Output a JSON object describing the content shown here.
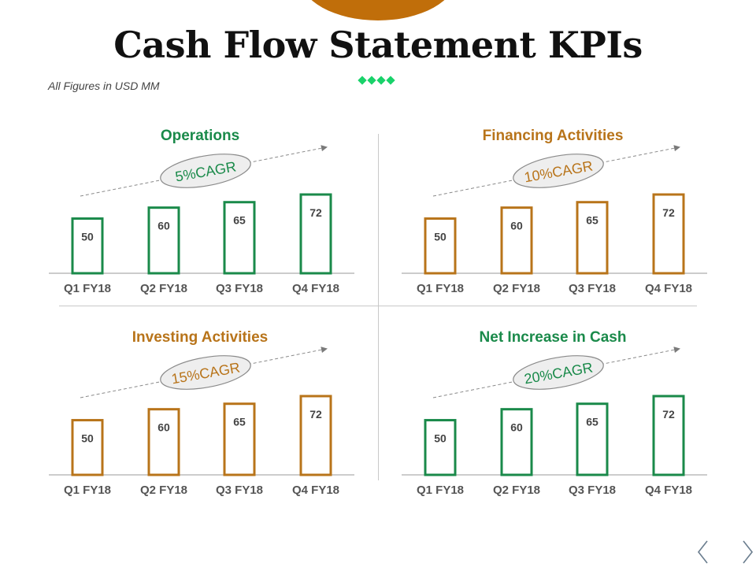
{
  "page": {
    "title": "Cash Flow Statement KPIs",
    "subtitle": "All Figures in USD MM",
    "accent_color": "#c06e0a",
    "diamond_color": "#19d26a",
    "nav": {
      "prev_icon": "chevron-left-icon",
      "next_icon": "chevron-right-icon"
    }
  },
  "chart_data": [
    {
      "type": "bar",
      "title": "Operations",
      "categories": [
        "Q1 FY18",
        "Q2 FY18",
        "Q3 FY18",
        "Q4 FY18"
      ],
      "values": [
        50,
        60,
        65,
        72
      ],
      "data_labels": [
        "50",
        "60",
        "65",
        "72"
      ],
      "annotation": "5%CAGR",
      "ylim": [
        0,
        80
      ],
      "color": "#1a8a4a",
      "title_color": "#1a8a4a",
      "annotation_color": "#1a8a4a"
    },
    {
      "type": "bar",
      "title": "Financing Activities",
      "categories": [
        "Q1 FY18",
        "Q2 FY18",
        "Q3 FY18",
        "Q4 FY18"
      ],
      "values": [
        50,
        60,
        65,
        72
      ],
      "data_labels": [
        "50",
        "60",
        "65",
        "72"
      ],
      "annotation": "10%CAGR",
      "ylim": [
        0,
        80
      ],
      "color": "#b8741a",
      "title_color": "#b8741a",
      "annotation_color": "#b8741a"
    },
    {
      "type": "bar",
      "title": "Investing Activities",
      "categories": [
        "Q1 FY18",
        "Q2 FY18",
        "Q3 FY18",
        "Q4 FY18"
      ],
      "values": [
        50,
        60,
        65,
        72
      ],
      "data_labels": [
        "50",
        "60",
        "65",
        "72"
      ],
      "annotation": "15%CAGR",
      "ylim": [
        0,
        80
      ],
      "color": "#b8741a",
      "title_color": "#b8741a",
      "annotation_color": "#b8741a"
    },
    {
      "type": "bar",
      "title": "Net Increase in Cash",
      "categories": [
        "Q1 FY18",
        "Q2 FY18",
        "Q3 FY18",
        "Q4 FY18"
      ],
      "values": [
        50,
        60,
        65,
        72
      ],
      "data_labels": [
        "50",
        "60",
        "65",
        "72"
      ],
      "annotation": "20%CAGR",
      "ylim": [
        0,
        80
      ],
      "color": "#1a8a4a",
      "title_color": "#1a8a4a",
      "annotation_color": "#1a8a4a"
    }
  ]
}
